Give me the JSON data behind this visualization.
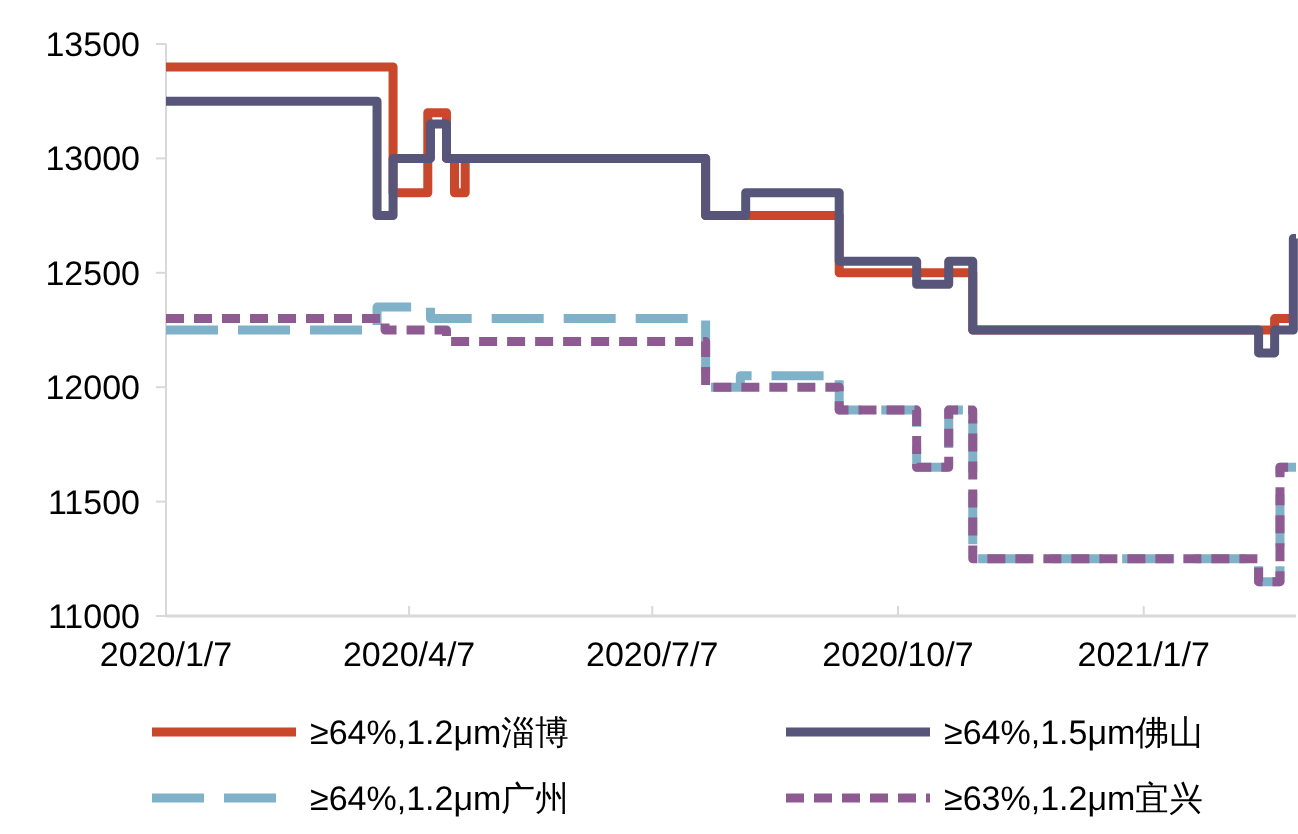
{
  "chart_data": {
    "type": "step",
    "xlim": [
      "2020-01-07",
      "2021-03-05"
    ],
    "xticks": [
      {
        "value": "2020-01-07",
        "label": "2020/1/7"
      },
      {
        "value": "2020-04-07",
        "label": "2020/4/7"
      },
      {
        "value": "2020-07-07",
        "label": "2020/7/7"
      },
      {
        "value": "2020-10-07",
        "label": "2020/10/7"
      },
      {
        "value": "2021-01-07",
        "label": "2021/1/7"
      }
    ],
    "ylim": [
      11000,
      13500
    ],
    "yticks": [
      11000,
      11500,
      12000,
      12500,
      13000,
      13500
    ],
    "grid": false,
    "legend": "bottom",
    "series": [
      {
        "name": "≥64%,1.2μm淄博",
        "color": "#c9472a",
        "line_style": "solid",
        "x": [
          "2020-01-07",
          "2020-04-01",
          "2020-04-14",
          "2020-04-21",
          "2020-04-24",
          "2020-04-28",
          "2020-07-27",
          "2020-09-15",
          "2020-11-04",
          "2021-02-25",
          "2021-03-05"
        ],
        "values": [
          13400,
          12850,
          13200,
          13000,
          12850,
          13000,
          12750,
          12500,
          12250,
          12300,
          12300
        ]
      },
      {
        "name": "≥64%,1.5μm佛山",
        "color": "#575579",
        "line_style": "solid",
        "x": [
          "2020-01-07",
          "2020-03-26",
          "2020-04-01",
          "2020-04-15",
          "2020-04-21",
          "2020-07-27",
          "2020-08-11",
          "2020-09-15",
          "2020-10-14",
          "2020-10-26",
          "2020-11-04",
          "2021-02-19",
          "2021-02-25",
          "2021-03-04",
          "2021-03-05"
        ],
        "values": [
          13250,
          12750,
          13000,
          13150,
          13000,
          12750,
          12850,
          12550,
          12450,
          12550,
          12250,
          12150,
          12250,
          12650,
          12650
        ]
      },
      {
        "name": "≥64%,1.2μm广州",
        "color": "#7fb1c8",
        "line_style": "dashed",
        "x": [
          "2020-01-07",
          "2020-03-26",
          "2020-04-15",
          "2020-07-27",
          "2020-08-09",
          "2020-09-15",
          "2020-10-14",
          "2020-10-26",
          "2020-11-04",
          "2021-02-19",
          "2021-02-27",
          "2021-03-05"
        ],
        "values": [
          12250,
          12350,
          12300,
          12000,
          12050,
          11900,
          11650,
          11900,
          11250,
          11150,
          11650,
          11650
        ]
      },
      {
        "name": "≥63%,1.2μm宜兴",
        "color": "#8e5a92",
        "line_style": "dotted",
        "x": [
          "2020-01-07",
          "2020-03-29",
          "2020-04-21",
          "2020-07-27",
          "2020-09-15",
          "2020-10-14",
          "2020-10-26",
          "2020-11-04",
          "2021-02-19",
          "2021-02-27",
          "2021-03-05"
        ],
        "values": [
          12300,
          12250,
          12200,
          12000,
          11900,
          11650,
          11900,
          11250,
          11150,
          11650,
          11650
        ]
      }
    ]
  }
}
